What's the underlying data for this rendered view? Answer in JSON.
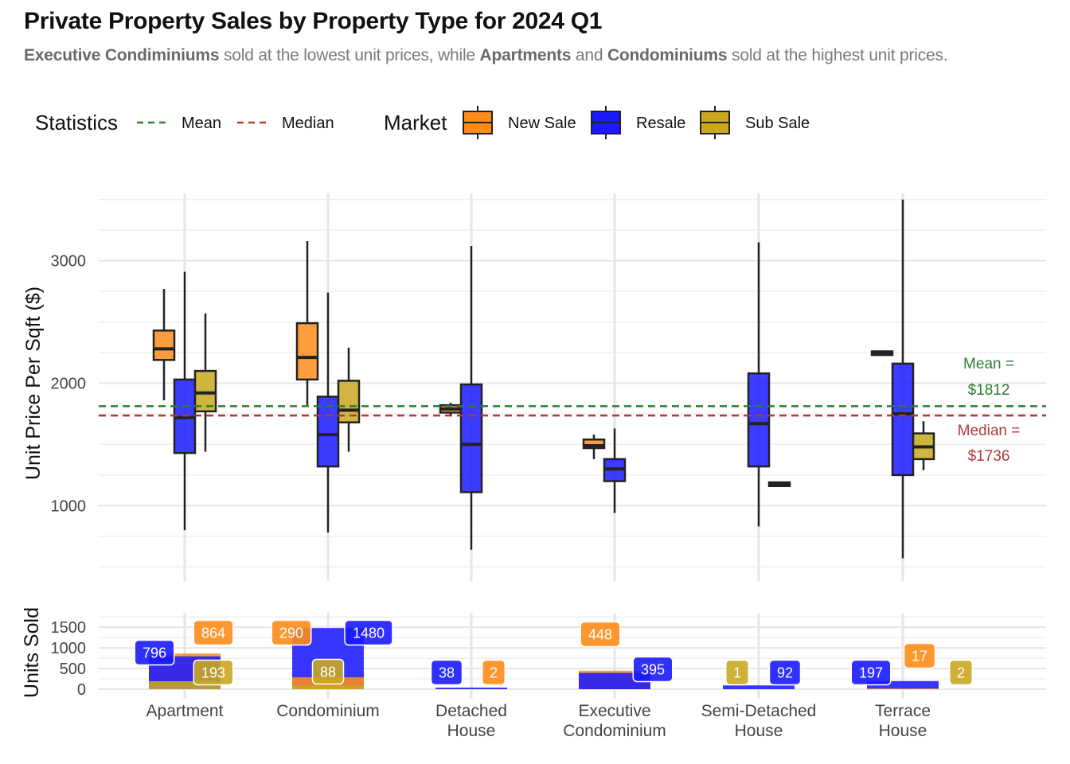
{
  "title": "Private Property Sales by Property Type for 2024 Q1",
  "subtitle": {
    "p1": "Executive Condiminiums",
    "p2": " sold at the lowest unit prices, while ",
    "p3": "Apartments",
    "p4": " and ",
    "p5": "Condominiums",
    "p6": " sold at the highest unit prices."
  },
  "legend": {
    "statistics_title": "Statistics",
    "statistics_items": [
      {
        "label": "Mean",
        "color": "#2e7d32",
        "style": "dashed"
      },
      {
        "label": "Median",
        "color": "#c0392b",
        "style": "dashed"
      }
    ],
    "market_title": "Market",
    "market_items": [
      {
        "label": "New Sale",
        "color": "#ff8c1a"
      },
      {
        "label": "Resale",
        "color": "#1a1aff"
      },
      {
        "label": "Sub Sale",
        "color": "#c9a820"
      }
    ]
  },
  "chart_data": [
    {
      "type": "boxplot",
      "ylabel": "Unit Price Per Sqft ($)",
      "xlabel": "",
      "ylim": [
        450,
        3550
      ],
      "yticks": [
        1000,
        2000,
        3000
      ],
      "grid": true,
      "categories": [
        "Apartment",
        "Condominium",
        "Detached\nHouse",
        "Executive\nCondominium",
        "Semi-Detached\nHouse",
        "Terrace\nHouse"
      ],
      "series": [
        {
          "name": "New Sale",
          "color": "#ff8c1a",
          "boxes": [
            {
              "category": 0,
              "whisker_low": 1860,
              "q1": 2190,
              "median": 2280,
              "q3": 2430,
              "whisker_high": 2770
            },
            {
              "category": 1,
              "whisker_low": 1820,
              "q1": 2030,
              "median": 2210,
              "q3": 2490,
              "whisker_high": 3160
            },
            {
              "category": 2,
              "whisker_low": 1740,
              "q1": 1760,
              "median": 1790,
              "q3": 1820,
              "whisker_high": 1840
            },
            {
              "category": 3,
              "whisker_low": 1380,
              "q1": 1470,
              "median": 1490,
              "q3": 1540,
              "whisker_high": 1580
            },
            {
              "category": 5,
              "whisker_low": 2230,
              "q1": 2230,
              "median": 2245,
              "q3": 2260,
              "whisker_high": 2260
            }
          ]
        },
        {
          "name": "Resale",
          "color": "#1a1aff",
          "boxes": [
            {
              "category": 0,
              "whisker_low": 800,
              "q1": 1430,
              "median": 1720,
              "q3": 2030,
              "whisker_high": 2910
            },
            {
              "category": 1,
              "whisker_low": 780,
              "q1": 1320,
              "median": 1580,
              "q3": 1890,
              "whisker_high": 2740
            },
            {
              "category": 2,
              "whisker_low": 640,
              "q1": 1110,
              "median": 1500,
              "q3": 1990,
              "whisker_high": 3120
            },
            {
              "category": 3,
              "whisker_low": 940,
              "q1": 1200,
              "median": 1300,
              "q3": 1380,
              "whisker_high": 1630
            },
            {
              "category": 4,
              "whisker_low": 830,
              "q1": 1320,
              "median": 1670,
              "q3": 2080,
              "whisker_high": 3150
            },
            {
              "category": 5,
              "whisker_low": 570,
              "q1": 1250,
              "median": 1750,
              "q3": 2160,
              "whisker_high": 3500
            }
          ]
        },
        {
          "name": "Sub Sale",
          "color": "#c9a820",
          "boxes": [
            {
              "category": 0,
              "whisker_low": 1440,
              "q1": 1770,
              "median": 1920,
              "q3": 2100,
              "whisker_high": 2570
            },
            {
              "category": 1,
              "whisker_low": 1440,
              "q1": 1680,
              "median": 1780,
              "q3": 2020,
              "whisker_high": 2290
            },
            {
              "category": 4,
              "whisker_low": 1160,
              "q1": 1160,
              "median": 1175,
              "q3": 1190,
              "whisker_high": 1190
            },
            {
              "category": 5,
              "whisker_low": 1290,
              "q1": 1380,
              "median": 1480,
              "q3": 1590,
              "whisker_high": 1690
            }
          ]
        }
      ],
      "reference_lines": [
        {
          "name": "Mean",
          "value": 1812,
          "color": "#2e7d32",
          "label_line1": "Mean =",
          "label_line2": "$1812"
        },
        {
          "name": "Median",
          "value": 1736,
          "color": "#b03a3a",
          "label_line1": "Median =",
          "label_line2": "$1736"
        }
      ]
    },
    {
      "type": "bar",
      "ylabel": "Units Sold",
      "ylim": [
        0,
        1850
      ],
      "yticks": [
        0,
        500,
        1000,
        1500
      ],
      "categories": [
        "Apartment",
        "Condominium",
        "Detached\nHouse",
        "Executive\nCondominium",
        "Semi-Detached\nHouse",
        "Terrace\nHouse"
      ],
      "series": [
        {
          "name": "New Sale",
          "color": "#ff8c1a",
          "values": [
            864,
            290,
            2,
            448,
            0,
            17
          ]
        },
        {
          "name": "Resale",
          "color": "#1a1aff",
          "values": [
            796,
            1480,
            38,
            395,
            92,
            197
          ]
        },
        {
          "name": "Sub Sale",
          "color": "#c9a820",
          "values": [
            193,
            88,
            0,
            0,
            1,
            2
          ]
        }
      ],
      "data_labels": [
        {
          "category": 0,
          "series": "Resale",
          "text": "796"
        },
        {
          "category": 0,
          "series": "New Sale",
          "text": "864"
        },
        {
          "category": 0,
          "series": "Sub Sale",
          "text": "193"
        },
        {
          "category": 1,
          "series": "New Sale",
          "text": "290"
        },
        {
          "category": 1,
          "series": "Resale",
          "text": "1480"
        },
        {
          "category": 1,
          "series": "Sub Sale",
          "text": "88"
        },
        {
          "category": 2,
          "series": "Resale",
          "text": "38"
        },
        {
          "category": 2,
          "series": "New Sale",
          "text": "2"
        },
        {
          "category": 3,
          "series": "New Sale",
          "text": "448"
        },
        {
          "category": 3,
          "series": "Resale",
          "text": "395"
        },
        {
          "category": 4,
          "series": "Sub Sale",
          "text": "1"
        },
        {
          "category": 4,
          "series": "Resale",
          "text": "92"
        },
        {
          "category": 5,
          "series": "Resale",
          "text": "197"
        },
        {
          "category": 5,
          "series": "New Sale",
          "text": "17"
        },
        {
          "category": 5,
          "series": "Sub Sale",
          "text": "2"
        }
      ]
    }
  ]
}
